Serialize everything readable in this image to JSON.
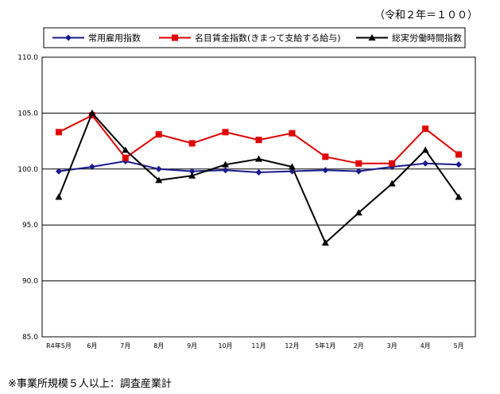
{
  "unit_note": "（令和２年＝１００）",
  "footnote": "※事業所規模５人以上：調査産業計",
  "colors": {
    "series": [
      "#1a1a8c",
      "#e00000",
      "#000000"
    ],
    "grid": "#000000",
    "plot_border": "#000000"
  },
  "chart_data": {
    "type": "line",
    "title": "",
    "xlabel": "",
    "ylabel": "",
    "categories": [
      "R4年5月",
      "6月",
      "7月",
      "8月",
      "9月",
      "10月",
      "11月",
      "12月",
      "5年1月",
      "2月",
      "3月",
      "4月",
      "5月"
    ],
    "ylim": [
      85.0,
      110.0
    ],
    "yticks": [
      "85.0",
      "90.0",
      "95.0",
      "100.0",
      "105.0",
      "110.0"
    ],
    "grid": true,
    "legend_position": "top",
    "series": [
      {
        "name": "常用雇用指数",
        "marker": "diamond",
        "values": [
          99.8,
          100.2,
          100.7,
          100.0,
          99.8,
          99.9,
          99.7,
          99.8,
          99.9,
          99.8,
          100.2,
          100.5,
          100.4
        ]
      },
      {
        "name": "名目賃金指数(きまって支給する給与)",
        "marker": "square",
        "values": [
          103.3,
          104.8,
          101.0,
          103.1,
          102.3,
          103.3,
          102.6,
          103.2,
          101.1,
          100.5,
          100.5,
          103.6,
          101.3
        ]
      },
      {
        "name": "総実労働時間指数",
        "marker": "triangle",
        "values": [
          97.5,
          105.0,
          101.7,
          99.0,
          99.4,
          100.4,
          100.9,
          100.2,
          93.4,
          96.1,
          98.7,
          101.7,
          97.5
        ]
      }
    ]
  }
}
